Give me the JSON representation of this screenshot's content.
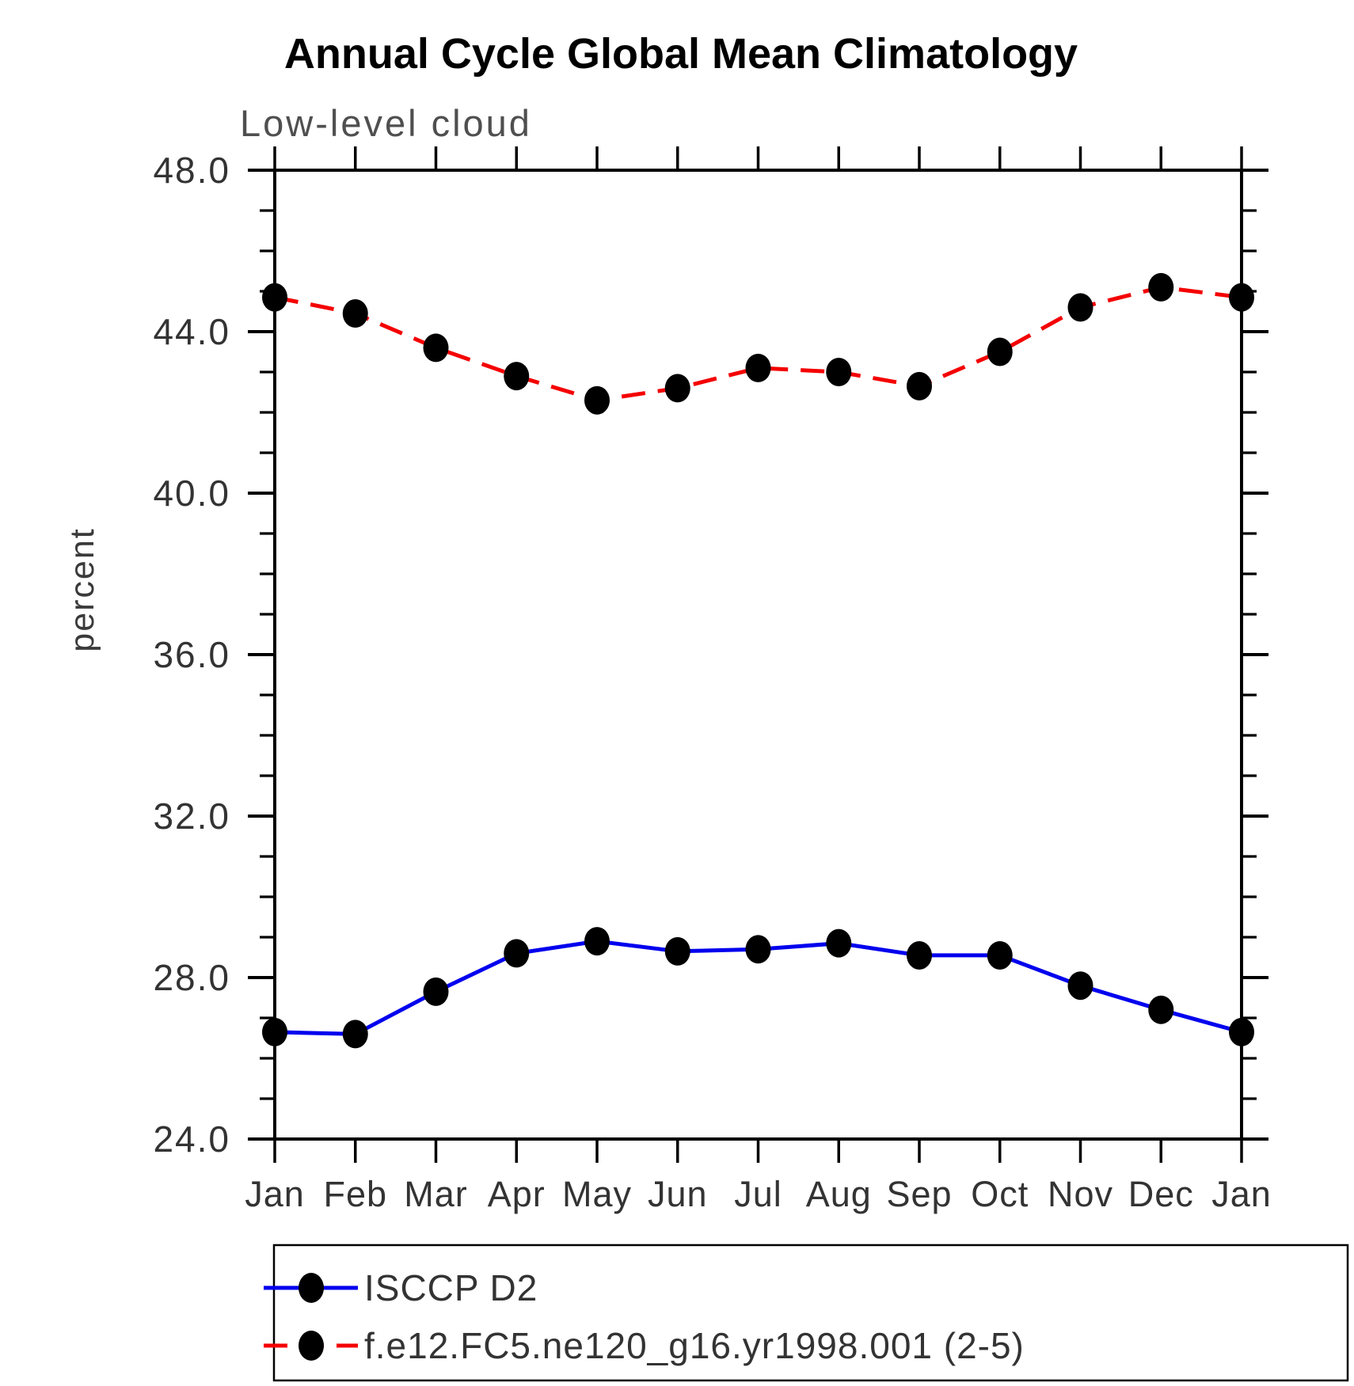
{
  "title": "Annual Cycle Global Mean Climatology",
  "subtitle": "Low-level cloud",
  "y_axis": {
    "label": "percent",
    "major_tick_labels": [
      "48.0",
      "44.0",
      "40.0",
      "36.0",
      "32.0",
      "28.0",
      "24.0"
    ],
    "major_tick_values": [
      48,
      44,
      40,
      36,
      32,
      28,
      24
    ],
    "minor_step": 1,
    "min": 24,
    "max": 48
  },
  "x_axis": {
    "tick_labels": [
      "Jan",
      "Feb",
      "Mar",
      "Apr",
      "May",
      "Jun",
      "Jul",
      "Aug",
      "Sep",
      "Oct",
      "Nov",
      "Dec",
      "Jan"
    ]
  },
  "legend": {
    "entries": [
      {
        "label": "ISCCP D2",
        "color": "#0000ee",
        "line": "solid",
        "marker": "black-dot"
      },
      {
        "label": "f.e12.FC5.ne120_g16.yr1998.001 (2-5)",
        "color": "#f40000",
        "line": "dashed",
        "marker": "black-dot"
      }
    ]
  },
  "chart_data": {
    "type": "line",
    "x": [
      "Jan",
      "Feb",
      "Mar",
      "Apr",
      "May",
      "Jun",
      "Jul",
      "Aug",
      "Sep",
      "Oct",
      "Nov",
      "Dec",
      "Jan"
    ],
    "series": [
      {
        "name": "ISCCP D2",
        "color": "#0000ee",
        "line": "solid",
        "marker_color": "#000000",
        "values": [
          26.65,
          26.6,
          27.65,
          28.6,
          28.9,
          28.65,
          28.7,
          28.85,
          28.55,
          28.55,
          27.8,
          27.2,
          26.65
        ]
      },
      {
        "name": "f.e12.FC5.ne120_g16.yr1998.001 (2-5)",
        "color": "#f40000",
        "line": "dashed",
        "marker_color": "#000000",
        "values": [
          44.85,
          44.45,
          43.6,
          42.9,
          42.3,
          42.6,
          43.1,
          43.0,
          42.65,
          43.5,
          44.6,
          45.1,
          44.85
        ]
      }
    ],
    "title": "Annual Cycle Global Mean Climatology",
    "subtitle": "Low-level cloud",
    "xlabel": "",
    "ylabel": "percent",
    "ylim": [
      24,
      48
    ],
    "grid": false,
    "legend_position": "bottom"
  }
}
